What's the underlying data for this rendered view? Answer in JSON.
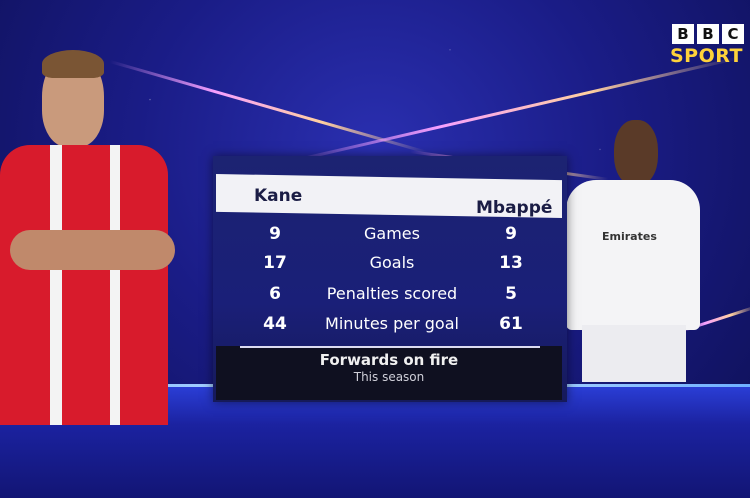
{
  "broadcaster": {
    "logo_letters": [
      "B",
      "B",
      "C"
    ],
    "logo_sub": "SPORT",
    "accent": "#ffd23a"
  },
  "table": {
    "left_player": "Kane",
    "right_player": "Mbappé",
    "rows": [
      {
        "label": "Games",
        "left": "9",
        "right": "9"
      },
      {
        "label": "Goals",
        "left": "17",
        "right": "13"
      },
      {
        "label": "Penalties scored",
        "left": "6",
        "right": "5"
      },
      {
        "label": "Minutes per goal",
        "left": "44",
        "right": "61"
      }
    ],
    "title": "Forwards on fire",
    "subtitle": "This season"
  },
  "kit_sponsor": "Emirates"
}
